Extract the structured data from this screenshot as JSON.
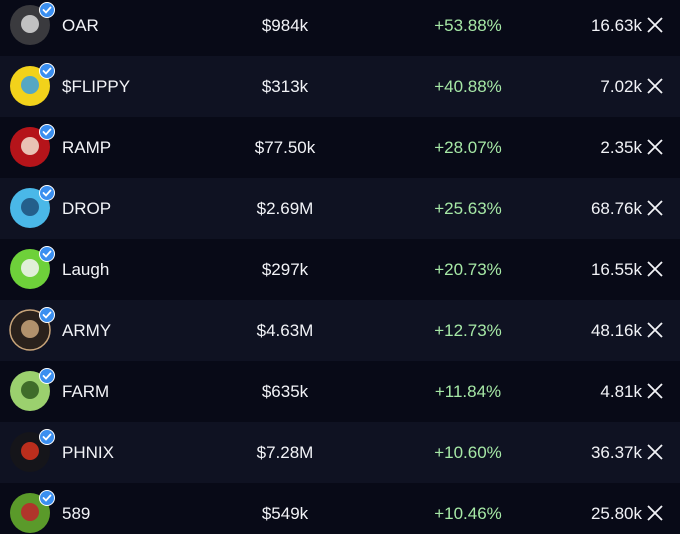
{
  "table": {
    "rows": [
      [
        "OAR",
        "$984k",
        "+53.88%",
        "16.63k"
      ],
      [
        "$FLIPPY",
        "$313k",
        "+40.88%",
        "7.02k"
      ],
      [
        "RAMP",
        "$77.50k",
        "+28.07%",
        "2.35k"
      ],
      [
        "DROP",
        "$2.69M",
        "+25.63%",
        "68.76k"
      ],
      [
        "Laugh",
        "$297k",
        "+20.73%",
        "16.55k"
      ],
      [
        "ARMY",
        "$4.63M",
        "+12.73%",
        "48.16k"
      ],
      [
        "FARM",
        "$635k",
        "+11.84%",
        "4.81k"
      ],
      [
        "PHNIX",
        "$7.28M",
        "+10.60%",
        "36.37k"
      ],
      [
        "589",
        "$549k",
        "+10.46%",
        "25.80k"
      ]
    ]
  }
}
